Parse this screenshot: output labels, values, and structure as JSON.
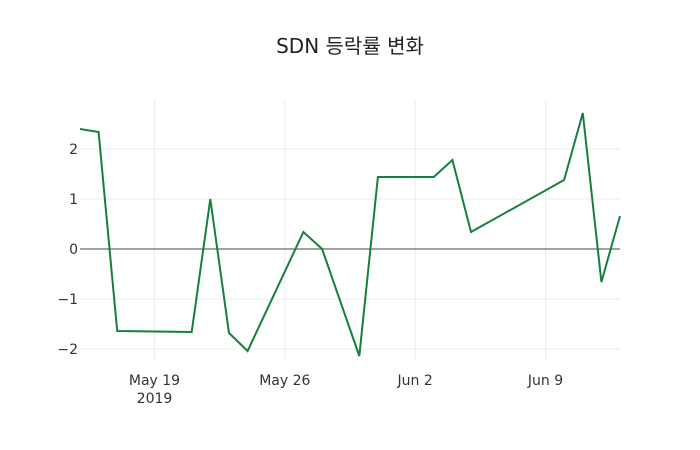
{
  "title": "SDN 등락률 변화",
  "colors": {
    "line": "#15803d",
    "grid": "#ebebeb",
    "zero": "#444444"
  },
  "chart_data": {
    "type": "line",
    "title": "SDN 등락률 변화",
    "xlabel": "",
    "ylabel": "",
    "x": [
      "2019-05-15",
      "2019-05-16",
      "2019-05-17",
      "2019-05-21",
      "2019-05-22",
      "2019-05-23",
      "2019-05-24",
      "2019-05-27",
      "2019-05-28",
      "2019-05-30",
      "2019-05-31",
      "2019-06-03",
      "2019-06-04",
      "2019-06-05",
      "2019-06-10",
      "2019-06-11",
      "2019-06-12",
      "2019-06-13"
    ],
    "series": [
      {
        "name": "등락률",
        "values": [
          2.4,
          2.34,
          -1.64,
          -1.66,
          1.0,
          -1.68,
          -2.04,
          0.34,
          0.0,
          -2.14,
          1.44,
          1.44,
          1.78,
          0.34,
          1.38,
          2.72,
          -0.66,
          0.66
        ]
      }
    ],
    "xticks": [
      {
        "label": "May 19",
        "sublabel": "2019",
        "date": "2019-05-19"
      },
      {
        "label": "May 26",
        "sublabel": "",
        "date": "2019-05-26"
      },
      {
        "label": "Jun 2",
        "sublabel": "",
        "date": "2019-06-02"
      },
      {
        "label": "Jun 9",
        "sublabel": "",
        "date": "2019-06-09"
      }
    ],
    "yticks": [
      2,
      1,
      0,
      -1,
      -2
    ],
    "ytick_labels": [
      "2",
      "1",
      "0",
      "−1",
      "−2"
    ],
    "ylim": [
      -2.3,
      3.0
    ],
    "xlim": [
      "2019-05-15",
      "2019-06-13"
    ],
    "grid": true,
    "legend": false
  }
}
